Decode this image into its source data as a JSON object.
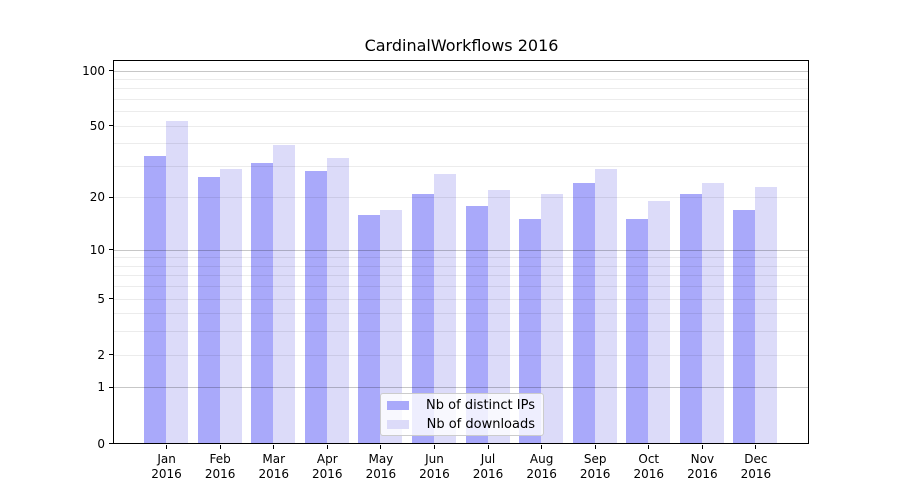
{
  "figure": {
    "background": "#ffffff"
  },
  "chart_data": {
    "type": "bar",
    "title": "CardinalWorkflows 2016",
    "xlabel": "",
    "ylabel": "",
    "yscale": "log1p",
    "ylim": [
      0,
      113
    ],
    "ytick_values": [
      100,
      50,
      20,
      10,
      5,
      2,
      1,
      0
    ],
    "ytick_labels": [
      "100",
      "50",
      "20",
      "10",
      "5",
      "2",
      "1",
      "0"
    ],
    "gridlines": {
      "major": [
        1,
        10,
        100
      ],
      "minor": [
        2,
        3,
        4,
        5,
        6,
        7,
        8,
        9,
        20,
        30,
        40,
        50,
        60,
        70,
        80,
        90
      ]
    },
    "grid": "horizontal, drawn over bars",
    "legend_position": "inside lower-center",
    "categories": [
      "Jan 2016",
      "Feb 2016",
      "Mar 2016",
      "Apr 2016",
      "May 2016",
      "Jun 2016",
      "Jul 2016",
      "Aug 2016",
      "Sep 2016",
      "Oct 2016",
      "Nov 2016",
      "Dec 2016"
    ],
    "series": [
      {
        "name": "Nb of distinct IPs",
        "color": "#a9a9fa",
        "values": [
          34,
          26,
          31,
          28,
          16,
          21,
          18,
          15,
          24,
          15,
          21,
          17
        ]
      },
      {
        "name": "Nb of downloads",
        "color": "#dcdbf9",
        "values": [
          53,
          29,
          39,
          33,
          17,
          27,
          22,
          21,
          29,
          19,
          24,
          23
        ]
      }
    ]
  },
  "colors": {
    "axis": "#000000",
    "grid_minor": "#ececec",
    "grid_major": "#c7c7c7",
    "legend_border": "#cccccc",
    "legend_background": "rgba(255,255,255,0.8)",
    "text": "#000000"
  }
}
